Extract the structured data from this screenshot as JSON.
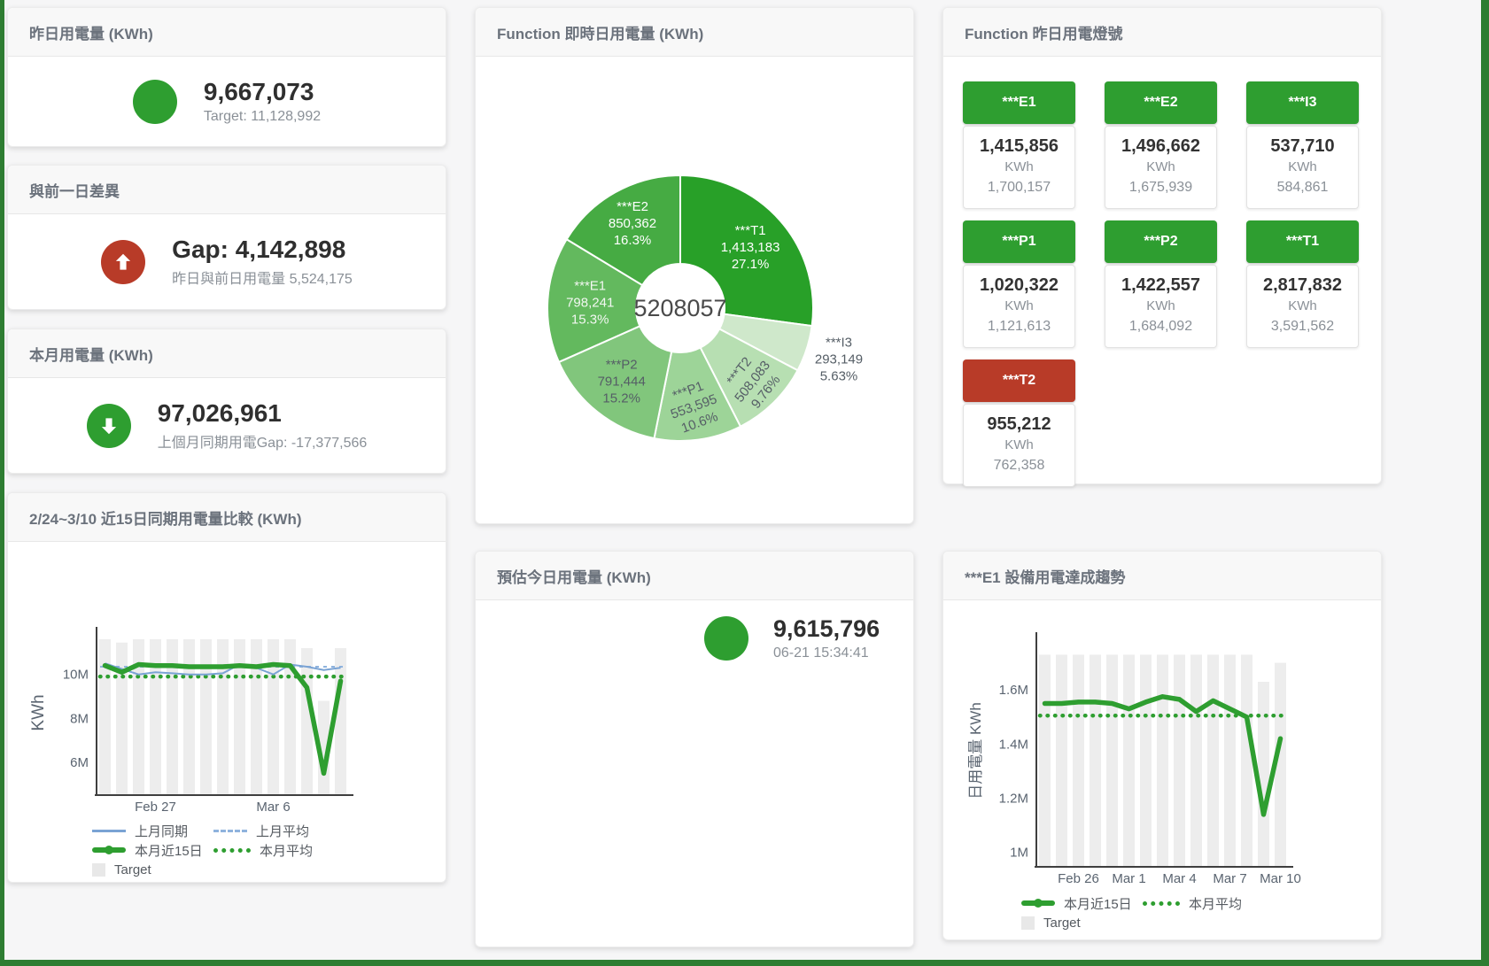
{
  "colors": {
    "green": "#2e9e30",
    "red": "#b83b28",
    "frame_green": "#2e7d32",
    "bar_gray": "#ededed",
    "blue_line": "#7aa3d4",
    "blue_dash": "#8fb3dd",
    "axis": "#3f3f3f",
    "tick_text": "#5a6470"
  },
  "stat_cards": [
    {
      "id": "yesterday",
      "title": "昨日用電量 (KWh)",
      "value": "9,667,073",
      "subtitle": "Target: 11,128,992",
      "icon": "circle",
      "icon_color": "#2e9e30"
    },
    {
      "id": "gap",
      "title": "與前一日差異",
      "value": "Gap: 4,142,898",
      "subtitle": "昨日與前日用電量 5,524,175",
      "icon": "arrow-up",
      "icon_color": "#b83b28"
    },
    {
      "id": "month",
      "title": "本月用電量 (KWh)",
      "value": "97,026,961",
      "subtitle": "上個月同期用電Gap: -17,377,566",
      "icon": "arrow-down",
      "icon_color": "#2e9e30"
    }
  ],
  "estimate_card": {
    "title": "預估今日用電量 (KWh)",
    "value": "9,615,796",
    "subtitle": "06-21 15:34:41",
    "icon": "circle",
    "icon_color": "#2e9e30"
  },
  "lights_card": {
    "title": "Function 昨日用電燈號",
    "tiles": [
      {
        "name": "***E1",
        "value": "1,415,856",
        "unit": "KWh",
        "target": "1,700,157",
        "status": "green"
      },
      {
        "name": "***E2",
        "value": "1,496,662",
        "unit": "KWh",
        "target": "1,675,939",
        "status": "green"
      },
      {
        "name": "***I3",
        "value": "537,710",
        "unit": "KWh",
        "target": "584,861",
        "status": "green"
      },
      {
        "name": "***P1",
        "value": "1,020,322",
        "unit": "KWh",
        "target": "1,121,613",
        "status": "green"
      },
      {
        "name": "***P2",
        "value": "1,422,557",
        "unit": "KWh",
        "target": "1,684,092",
        "status": "green"
      },
      {
        "name": "***T1",
        "value": "2,817,832",
        "unit": "KWh",
        "target": "3,591,562",
        "status": "green"
      },
      {
        "name": "***T2",
        "value": "955,212",
        "unit": "KWh",
        "target": "762,358",
        "status": "red"
      }
    ]
  },
  "chart_data": [
    {
      "type": "pie",
      "title": "Function 即時日用電量 (KWh)",
      "center_total": "5208057",
      "slices": [
        {
          "name": "***T1",
          "value": 1413183,
          "value_label": "1,413,183",
          "pct": "27.1%",
          "color": "#28a028",
          "text_color": "#ffffff",
          "rot": 0,
          "label_r": 105
        },
        {
          "name": "***I3",
          "value": 293149,
          "value_label": "293,149",
          "pct": "5.63%",
          "color": "#cfe8cb",
          "text_color": "#555e66",
          "rot": 0,
          "label_r": 188
        },
        {
          "name": "***T2",
          "value": 508083,
          "value_label": "508,083",
          "pct": "9.76%",
          "color": "#b7dfb2",
          "text_color": "#555e66",
          "rot": -52,
          "label_r": 116
        },
        {
          "name": "***P1",
          "value": 553595,
          "value_label": "553,595",
          "pct": "10.6%",
          "color": "#9dd498",
          "text_color": "#555e66",
          "rot": -20,
          "label_r": 112
        },
        {
          "name": "***P2",
          "value": 791444,
          "value_label": "791,444",
          "pct": "15.2%",
          "color": "#81c67c",
          "text_color": "#555e66",
          "rot": 0,
          "label_r": 106
        },
        {
          "name": "***E1",
          "value": 798241,
          "value_label": "798,241",
          "pct": "15.3%",
          "color": "#63b95e",
          "text_color": "#f2f7f1",
          "rot": 0,
          "label_r": 102
        },
        {
          "name": "***E2",
          "value": 850362,
          "value_label": "850,362",
          "pct": "16.3%",
          "color": "#46ab43",
          "text_color": "#ffffff",
          "rot": 0,
          "label_r": 110
        }
      ]
    },
    {
      "type": "line",
      "title": "2/24~3/10 近15日同期用電量比較 (KWh)",
      "ylabel": "KWh",
      "value_unit": "millions",
      "ylim": [
        4.55,
        12.0
      ],
      "yticks": [
        {
          "v": 6,
          "label": "6M"
        },
        {
          "v": 8,
          "label": "8M"
        },
        {
          "v": 10,
          "label": "10M"
        }
      ],
      "xticks": [
        {
          "i": 3,
          "label": "Feb 27"
        },
        {
          "i": 10,
          "label": "Mar 6"
        }
      ],
      "n": 15,
      "target_bars": [
        11.6,
        11.45,
        11.6,
        11.6,
        11.6,
        11.6,
        11.6,
        11.6,
        11.6,
        11.6,
        11.6,
        11.6,
        11.2,
        8.8,
        11.2
      ],
      "series": [
        {
          "name": "上月平均",
          "style": "dash-blue",
          "avg": 10.35
        },
        {
          "name": "本月平均",
          "style": "dot-green",
          "avg": 9.9
        },
        {
          "name": "上月同期",
          "style": "line-blue",
          "values": [
            10.5,
            10.25,
            10.0,
            10.1,
            10.05,
            10.0,
            10.0,
            10.05,
            10.45,
            10.3,
            10.0,
            10.45,
            10.35,
            10.2,
            10.3
          ]
        },
        {
          "name": "本月近15日",
          "style": "line-green",
          "values": [
            10.4,
            10.1,
            10.45,
            10.4,
            10.4,
            10.35,
            10.35,
            10.35,
            10.4,
            10.35,
            10.45,
            10.4,
            9.4,
            5.5,
            9.7
          ]
        },
        {
          "name": "Target",
          "style": "box-gray"
        }
      ],
      "legend_rows": [
        [
          "上月同期",
          "上月平均"
        ],
        [
          "本月近15日",
          "本月平均"
        ],
        [
          "Target"
        ]
      ]
    },
    {
      "type": "line",
      "title": "***E1 設備用電達成趨勢",
      "ylabel": "日用電量 KWh",
      "value_unit": "millions",
      "ylim": [
        0.95,
        1.8
      ],
      "yticks": [
        {
          "v": 1,
          "label": "1M"
        },
        {
          "v": 1.2,
          "label": "1.2M"
        },
        {
          "v": 1.4,
          "label": "1.4M"
        },
        {
          "v": 1.6,
          "label": "1.6M"
        }
      ],
      "xticks": [
        {
          "i": 2,
          "label": "Feb 26"
        },
        {
          "i": 5,
          "label": "Mar 1"
        },
        {
          "i": 8,
          "label": "Mar 4"
        },
        {
          "i": 11,
          "label": "Mar 7"
        },
        {
          "i": 14,
          "label": "Mar 10"
        }
      ],
      "n": 15,
      "target_bars": [
        1.73,
        1.73,
        1.73,
        1.73,
        1.73,
        1.73,
        1.73,
        1.73,
        1.73,
        1.73,
        1.73,
        1.73,
        1.73,
        1.63,
        1.7
      ],
      "series": [
        {
          "name": "本月平均",
          "style": "dot-green",
          "avg": 1.505
        },
        {
          "name": "本月近15日",
          "style": "line-green",
          "values": [
            1.55,
            1.55,
            1.555,
            1.555,
            1.55,
            1.53,
            1.555,
            1.575,
            1.565,
            1.52,
            1.56,
            1.53,
            1.5,
            1.14,
            1.42
          ]
        },
        {
          "name": "Target",
          "style": "box-gray"
        }
      ],
      "legend_rows": [
        [
          "本月近15日",
          "本月平均"
        ],
        [
          "Target"
        ]
      ]
    }
  ]
}
